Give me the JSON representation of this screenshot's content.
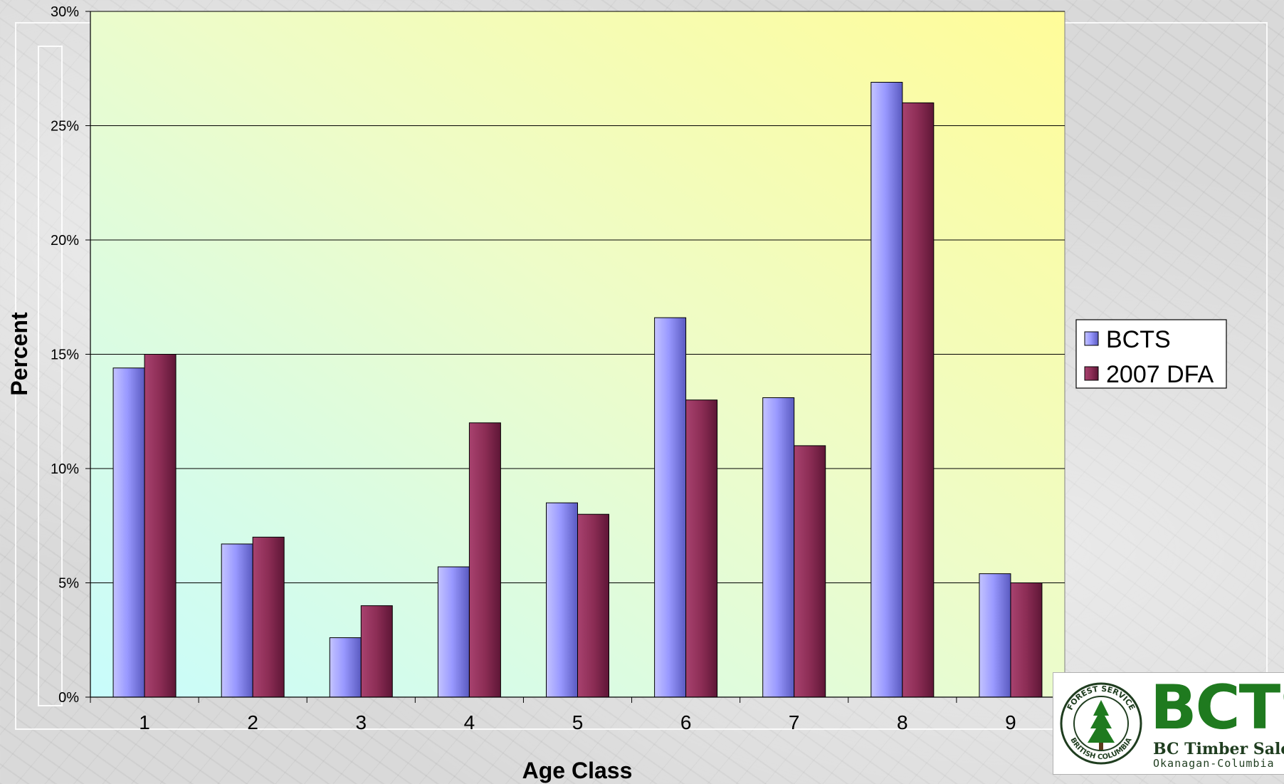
{
  "chart_data": {
    "type": "bar",
    "title": "",
    "xlabel": "Age Class",
    "ylabel": "Percent",
    "categories": [
      "1",
      "2",
      "3",
      "4",
      "5",
      "6",
      "7",
      "8",
      "9"
    ],
    "series": [
      {
        "name": "BCTS",
        "values": [
          14.4,
          6.7,
          2.6,
          5.7,
          8.5,
          16.6,
          13.1,
          26.9,
          5.4
        ],
        "color": "#9999ff"
      },
      {
        "name": "2007 DFA",
        "values": [
          15.0,
          7.0,
          4.0,
          12.0,
          8.0,
          13.0,
          11.0,
          26.0,
          5.0
        ],
        "color": "#993366"
      }
    ],
    "ylim": [
      0,
      30
    ],
    "yticks": [
      "0%",
      "5%",
      "10%",
      "15%",
      "20%",
      "25%",
      "30%"
    ],
    "grid": true,
    "legend": "right",
    "plot_background": "yellow-to-cyan gradient"
  },
  "logo": {
    "brand": "BCTS",
    "line1": "BC Timber Sales",
    "line2": "Okanagan-Columbia",
    "seal_top": "FOREST SERVICE",
    "seal_bottom": "BRITISH COLUMBIA",
    "color": "#1f7a1f"
  }
}
